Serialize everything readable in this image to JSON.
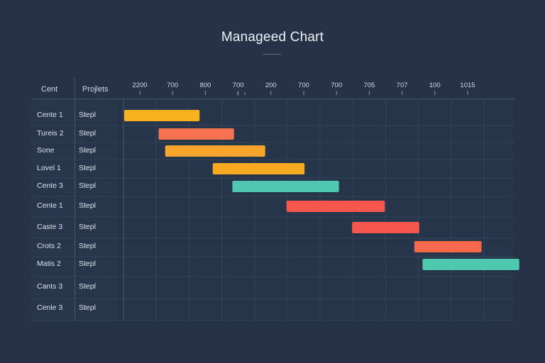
{
  "chart_data": {
    "type": "bar",
    "title": "Manageed Chart",
    "columns": [
      "Cent",
      "Projlets"
    ],
    "ticks": [
      "2200",
      "700",
      "800",
      "700",
      "200",
      "700",
      "700",
      "705",
      "707",
      "100",
      "1015"
    ],
    "rows": [
      {
        "name": "Cente 1",
        "project": "Stepl",
        "start": 0.0,
        "end": 2.3,
        "color": "#f7b21e"
      },
      {
        "name": "Tureis 2",
        "project": "Stepl",
        "start": 1.05,
        "end": 3.35,
        "color": "#f7734f"
      },
      {
        "name": "Sone",
        "project": "Stepl",
        "start": 1.25,
        "end": 4.3,
        "color": "#f7a62b"
      },
      {
        "name": "Lovel 1",
        "project": "Stepl",
        "start": 2.7,
        "end": 5.5,
        "color": "#f7aa1e"
      },
      {
        "name": "Cente 3",
        "project": "Stepl",
        "start": 3.3,
        "end": 6.55,
        "color": "#4ec9b0"
      },
      {
        "name": "Cente 1",
        "project": "Stepl",
        "start": 4.95,
        "end": 7.95,
        "color": "#f5574f"
      },
      {
        "name": "Caste 3",
        "project": "Stepl",
        "start": 6.95,
        "end": 9.0,
        "color": "#f5574f"
      },
      {
        "name": "Crots 2",
        "project": "Stepl",
        "start": 8.85,
        "end": 10.9,
        "color": "#f5684c"
      },
      {
        "name": "Matis 2",
        "project": "Stepl",
        "start": 9.1,
        "end": 12.05,
        "color": "#4ec9b0"
      },
      {
        "name": "Cants 3",
        "project": "Stepl",
        "start": null,
        "end": null,
        "color": null
      },
      {
        "name": "Cenle 3",
        "project": "Stepl",
        "start": null,
        "end": null,
        "color": null
      }
    ]
  }
}
